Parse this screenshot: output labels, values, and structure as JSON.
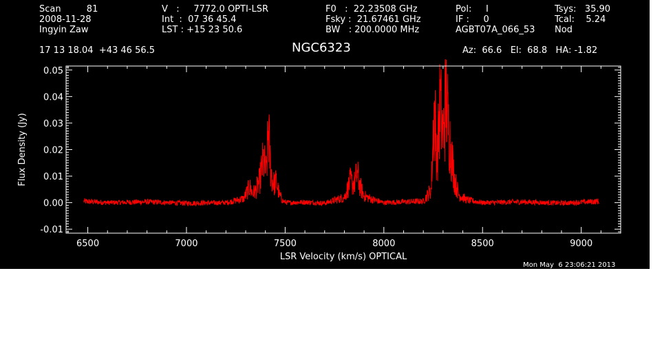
{
  "header": {
    "col1": [
      "Scan         81",
      "2008-11-28",
      "Ingyin Zaw"
    ],
    "col2": [
      "V   :     7772.0 OPTI-LSR",
      "Int  :  07 36 45.4",
      "LST : +15 23 50.6"
    ],
    "col3": [
      "F0   :  22.23508 GHz",
      "Fsky :  21.67461 GHz",
      "BW   : 200.0000 MHz"
    ],
    "col4": [
      "Pol:     I",
      "IF :     0",
      "AGBT07A_066_53"
    ],
    "col5": [
      "Tsys:   35.90",
      "Tcal:    5.24",
      "Nod"
    ],
    "coords": "17 13 18.04  +43 46 56.5",
    "source": "NGC6323",
    "azel": "Az:  66.6   El:  68.8   HA: -1.82",
    "timestamp": "Mon May  6 23:06:21 2013"
  },
  "colors": {
    "background": "#000000",
    "axes": "#ffffff",
    "trace": "#ff0000"
  },
  "chart_data": {
    "type": "line",
    "title": "NGC6323",
    "xlabel": "LSR Velocity (km/s) OPTICAL",
    "ylabel": "Flux Density (Jy)",
    "xlim": [
      6390,
      9200
    ],
    "ylim": [
      -0.0115,
      0.0515
    ],
    "xticks": [
      6500,
      7000,
      7500,
      8000,
      8500,
      9000
    ],
    "xtick_labels": [
      "6500",
      "7000",
      "7500",
      "8000",
      "8500",
      "9000"
    ],
    "yticks": [
      -0.01,
      0.0,
      0.01,
      0.02,
      0.03,
      0.04,
      0.05
    ],
    "ytick_labels": [
      "-0.01",
      "0.00",
      "0.01",
      "0.02",
      "0.03",
      "0.04",
      "0.05"
    ],
    "grid": false,
    "series": [
      {
        "x": [
          6480,
          6600,
          6800,
          7000,
          7200,
          7290,
          7320,
          7335,
          7350,
          7370,
          7390,
          7405,
          7415,
          7425,
          7435,
          7445,
          7455,
          7470,
          7490,
          7510,
          7600,
          7700,
          7800,
          7830,
          7850,
          7865,
          7880,
          7900,
          7950,
          8000,
          8100,
          8200,
          8240,
          8255,
          8270,
          8285,
          8300,
          8315,
          8325,
          8340,
          8360,
          8380,
          8420,
          8500,
          8700,
          8900,
          9090
        ],
        "y": [
          0.0005,
          0.0,
          0.0003,
          -0.0002,
          0.0,
          0.0015,
          0.006,
          0.0035,
          0.0045,
          0.008,
          0.016,
          0.011,
          0.028,
          0.014,
          0.0085,
          0.007,
          0.008,
          0.003,
          0.0005,
          0.0,
          0.0002,
          -0.0002,
          0.002,
          0.008,
          0.007,
          0.011,
          0.006,
          0.0025,
          0.001,
          0.0,
          0.0003,
          0.0005,
          0.005,
          0.036,
          0.016,
          0.038,
          0.025,
          0.04,
          0.03,
          0.02,
          0.008,
          0.003,
          0.001,
          0.0,
          0.0003,
          -0.0002,
          0.0005
        ]
      }
    ]
  }
}
